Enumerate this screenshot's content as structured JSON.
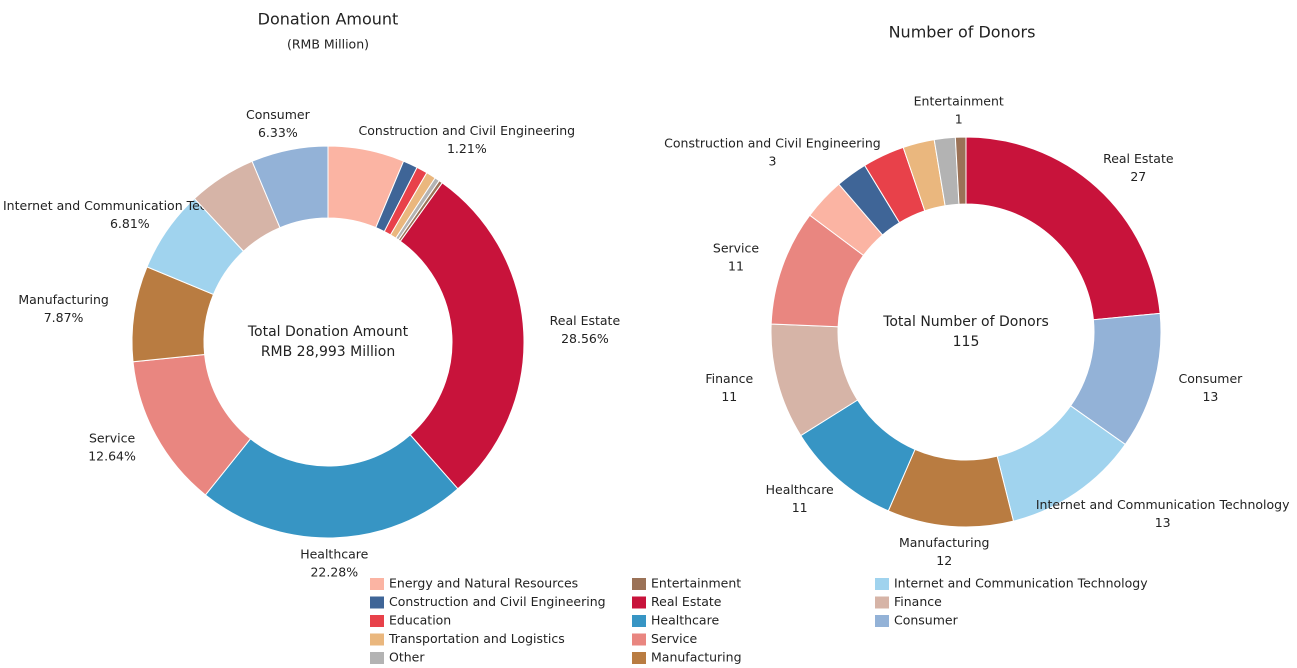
{
  "chart_data": [
    {
      "type": "donut",
      "title": "Donation Amount",
      "subtitle": "(RMB Million)",
      "center_text": [
        "Total Donation Amount",
        "RMB 28,993 Million"
      ],
      "categories": [
        "Energy and Natural Resources",
        "Construction and Civil Engineering",
        "Education",
        "Transportation and Logistics",
        "Other",
        "Entertainment",
        "Real Estate",
        "Healthcare",
        "Service",
        "Manufacturing",
        "Internet and Communication Technology",
        "Finance",
        "Consumer"
      ],
      "values": [
        6.3,
        1.21,
        0.9,
        0.8,
        0.4,
        0.3,
        28.56,
        22.28,
        12.64,
        7.87,
        6.81,
        5.6,
        6.33
      ],
      "value_labels": [
        null,
        "1.21%",
        null,
        null,
        null,
        null,
        "28.56%",
        "22.28%",
        "12.64%",
        "7.87%",
        "6.81%",
        null,
        "6.33%"
      ],
      "colors": [
        "#fbb4a3",
        "#3f6597",
        "#e8414a",
        "#eab77e",
        "#b3b3b3",
        "#9b7257",
        "#c8133b",
        "#3795c4",
        "#e98680",
        "#b97c41",
        "#a0d3ee",
        "#d6b4a7",
        "#93b2d7"
      ]
    },
    {
      "type": "donut",
      "title": "Number of Donors",
      "center_text": [
        "Total Number of Donors",
        "115"
      ],
      "categories": [
        "Real Estate",
        "Consumer",
        "Internet and Communication Technology",
        "Manufacturing",
        "Healthcare",
        "Finance",
        "Service",
        "Energy and Natural Resources",
        "Construction and Civil Engineering",
        "Education",
        "Transportation and Logistics",
        "Other",
        "Entertainment"
      ],
      "values": [
        27,
        13,
        13,
        12,
        11,
        11,
        11,
        4,
        3,
        4,
        3,
        2,
        1
      ],
      "value_labels": [
        "27",
        "13",
        "13",
        "12",
        "11",
        "11",
        "11",
        null,
        "3",
        null,
        null,
        null,
        "1"
      ],
      "colors": [
        "#c8133b",
        "#93b2d7",
        "#a0d3ee",
        "#b97c41",
        "#3795c4",
        "#d6b4a7",
        "#e98680",
        "#fbb4a3",
        "#3f6597",
        "#e8414a",
        "#eab77e",
        "#b3b3b3",
        "#9b7257"
      ]
    }
  ]
}
